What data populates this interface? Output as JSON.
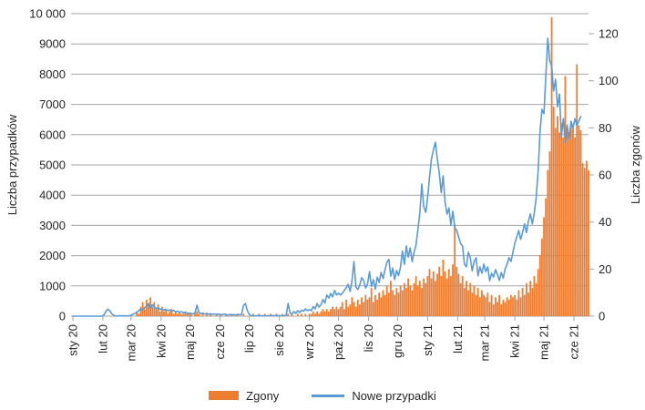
{
  "left_axis": {
    "title": "Liczba przypadków",
    "tick_values": [
      0,
      1000,
      2000,
      3000,
      4000,
      5000,
      6000,
      7000,
      8000,
      9000,
      10000
    ],
    "tick_labels": [
      "0",
      "1000",
      "2000",
      "3000",
      "4000",
      "5000",
      "6000",
      "7000",
      "8000",
      "9000",
      "10 000"
    ],
    "min": 0,
    "max": 10000
  },
  "right_axis": {
    "title": "Liczba zgonów",
    "tick_values": [
      0,
      20,
      40,
      60,
      80,
      100,
      120
    ],
    "tick_labels": [
      "0",
      "20",
      "40",
      "60",
      "80",
      "100",
      "120"
    ],
    "min": 0,
    "max": 120
  },
  "x_axis": {
    "tick_labels": [
      "sty 20",
      "lut 20",
      "mar 20",
      "kwi 20",
      "maj 20",
      "cze 20",
      "lip 20",
      "sie 20",
      "wrz 20",
      "paź 20",
      "lis 20",
      "gru 20",
      "sty 21",
      "lut 21",
      "mar 21",
      "kwi 21",
      "maj 21",
      "cze 21"
    ],
    "tick_days": [
      0,
      31,
      60,
      91,
      121,
      152,
      182,
      213,
      244,
      274,
      305,
      335,
      366,
      397,
      425,
      456,
      486,
      517
    ]
  },
  "legend": {
    "items": [
      {
        "label": "Zgony",
        "swatch": "bar",
        "color": "#ED7D31"
      },
      {
        "label": "Nowe przypadki",
        "swatch": "line",
        "color": "#5B9BD5"
      }
    ]
  },
  "colors": {
    "bar": "#ED7D31",
    "line": "#5B9BD5",
    "grid": "#A6A6A6",
    "text": "#262626"
  },
  "chart_data": {
    "type": "combo",
    "x_unit": "days_since_2020-01-01",
    "x_step_days": 2,
    "x_first_day": 0,
    "x_last_day": 532,
    "grid": true,
    "legend_position": "bottom",
    "series": [
      {
        "name": "Zgony",
        "type": "bar",
        "axis": "right",
        "color": "#ED7D31",
        "values": [
          0,
          0,
          0,
          0,
          0,
          0,
          0,
          0,
          0,
          0,
          0,
          0,
          0,
          0,
          0,
          0,
          0,
          0,
          0,
          0,
          0,
          0,
          0,
          0,
          0,
          0,
          0,
          0,
          0,
          0,
          0,
          0,
          0,
          2,
          1,
          4,
          6,
          3,
          7,
          5,
          8,
          4,
          6,
          3,
          5,
          2,
          4,
          2,
          3,
          1,
          2,
          3,
          1,
          2,
          1,
          2,
          1,
          1,
          2,
          1,
          1,
          1,
          0,
          1,
          2,
          1,
          0,
          1,
          0,
          1,
          0,
          1,
          0,
          0,
          1,
          0,
          1,
          0,
          0,
          1,
          0,
          0,
          1,
          0,
          0,
          1,
          0,
          0,
          1,
          0,
          0,
          0,
          0,
          1,
          0,
          0,
          1,
          0,
          0,
          1,
          0,
          0,
          1,
          0,
          0,
          1,
          0,
          0,
          1,
          0,
          0,
          1,
          0,
          1,
          0,
          0,
          1,
          0,
          1,
          0,
          1,
          0,
          1,
          1,
          2,
          1,
          2,
          1,
          2,
          3,
          2,
          3,
          2,
          3,
          4,
          3,
          4,
          3,
          4,
          6,
          3,
          7,
          4,
          5,
          8,
          6,
          4,
          7,
          5,
          8,
          6,
          9,
          7,
          8,
          12,
          6,
          9,
          7,
          10,
          8,
          11,
          9,
          13,
          10,
          15,
          11,
          9,
          12,
          10,
          13,
          11,
          14,
          12,
          16,
          13,
          11,
          14,
          17,
          13,
          15,
          12,
          16,
          14,
          17,
          20,
          16,
          19,
          15,
          18,
          21,
          17,
          24,
          19,
          16,
          20,
          17,
          22,
          39,
          21,
          18,
          14,
          17,
          12,
          15,
          11,
          14,
          10,
          13,
          9,
          12,
          8,
          11,
          9,
          8,
          10,
          6,
          9,
          5,
          8,
          6,
          9,
          5,
          7,
          6,
          8,
          7,
          9,
          8,
          9,
          7,
          11,
          8,
          12,
          9,
          14,
          10,
          15,
          12,
          17,
          14,
          20,
          26,
          33,
          42,
          50,
          62,
          70,
          127,
          89,
          80,
          85,
          78,
          82,
          76,
          102,
          80,
          78,
          83,
          80,
          76,
          107,
          81,
          79,
          65,
          63,
          66,
          62
        ]
      },
      {
        "name": "Nowe przypadki",
        "type": "line",
        "axis": "left",
        "color": "#5B9BD5",
        "values": [
          0,
          0,
          0,
          0,
          0,
          0,
          0,
          0,
          0,
          0,
          0,
          0,
          0,
          0,
          0,
          0,
          40,
          150,
          230,
          180,
          80,
          30,
          10,
          5,
          15,
          8,
          12,
          6,
          10,
          8,
          30,
          60,
          90,
          130,
          180,
          240,
          190,
          280,
          330,
          420,
          260,
          380,
          300,
          250,
          290,
          220,
          240,
          200,
          230,
          180,
          210,
          160,
          190,
          140,
          170,
          120,
          150,
          110,
          130,
          95,
          100,
          90,
          70,
          110,
          360,
          130,
          80,
          100,
          70,
          90,
          60,
          80,
          55,
          75,
          50,
          65,
          60,
          45,
          70,
          50,
          40,
          55,
          35,
          50,
          40,
          60,
          45,
          55,
          350,
          420,
          180,
          60,
          12,
          8,
          15,
          10,
          18,
          12,
          8,
          14,
          10,
          16,
          12,
          20,
          15,
          10,
          18,
          15,
          10,
          20,
          25,
          420,
          120,
          60,
          150,
          90,
          180,
          120,
          200,
          160,
          240,
          180,
          220,
          180,
          320,
          240,
          420,
          300,
          380,
          550,
          430,
          700,
          600,
          750,
          640,
          850,
          700,
          760,
          700,
          760,
          850,
          940,
          1050,
          820,
          1180,
          1800,
          960,
          880,
          1020,
          1270,
          1180,
          930,
          1060,
          1470,
          980,
          1210,
          890,
          1290,
          1110,
          1450,
          1240,
          1530,
          1790,
          1880,
          1320,
          1590,
          1210,
          1510,
          1340,
          1620,
          2150,
          1710,
          2320,
          1950,
          2260,
          1800,
          2110,
          2350,
          2890,
          3430,
          4370,
          3620,
          3430,
          3920,
          4600,
          5200,
          5500,
          5750,
          5200,
          4730,
          4080,
          4640,
          3770,
          3370,
          3580,
          3010,
          3470,
          2920,
          2830,
          2620,
          2400,
          2320,
          1720,
          1630,
          2110,
          1930,
          1500,
          1820,
          1930,
          1330,
          1630,
          1420,
          1720,
          1470,
          1630,
          1170,
          1420,
          1290,
          1540,
          1380,
          1180,
          1440,
          1260,
          1560,
          1720,
          1930,
          1810,
          2110,
          2410,
          2620,
          2830,
          2540,
          2780,
          3050,
          2760,
          3140,
          3380,
          3050,
          3400,
          3900,
          4800,
          6100,
          6840,
          6690,
          7980,
          9190,
          8450,
          8250,
          7440,
          7830,
          6920,
          7340,
          5930,
          6530,
          5720,
          6320,
          5840,
          6440,
          6230,
          6530,
          6300,
          6450,
          6600,
          null,
          null,
          null,
          null
        ]
      }
    ]
  }
}
